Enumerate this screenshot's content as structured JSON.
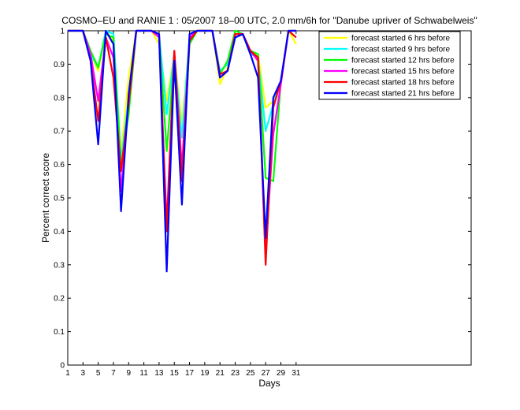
{
  "chart_data": {
    "type": "line",
    "title": "COSMO–EU and RANIE 1 : 05/2007 18–00 UTC, 2.0 mm/6h for \"Danube upriver of Schwabelweis\"",
    "xlabel": "Days",
    "ylabel": "Percent correct score",
    "xlim": [
      1,
      54
    ],
    "ylim": [
      0,
      1
    ],
    "x_ticks": [
      1,
      3,
      5,
      7,
      9,
      11,
      13,
      15,
      17,
      19,
      21,
      23,
      25,
      27,
      29,
      31
    ],
    "y_ticks": [
      0,
      0.1,
      0.2,
      0.3,
      0.4,
      0.5,
      0.6,
      0.7,
      0.8,
      0.9,
      1
    ],
    "y_tick_labels": [
      "0",
      "0.1",
      "0.2",
      "0.3",
      "0.4",
      "0.5",
      "0.6",
      "0.7",
      "0.8",
      "0.9",
      "1"
    ],
    "grid": false,
    "legend_position": "top-right",
    "x": [
      1,
      2,
      3,
      4,
      5,
      6,
      7,
      8,
      9,
      10,
      11,
      12,
      13,
      14,
      15,
      16,
      17,
      18,
      19,
      20,
      21,
      22,
      23,
      24,
      25,
      26,
      27,
      28,
      29,
      30,
      31
    ],
    "series": [
      {
        "name": "forecast started 6 hrs before",
        "color": "#ffff00",
        "values": [
          1,
          1,
          1,
          0.93,
          0.88,
          1,
          0.97,
          0.63,
          0.86,
          1,
          1,
          1,
          0.96,
          0.79,
          0.93,
          0.72,
          0.97,
          1,
          1,
          1,
          0.84,
          0.89,
          0.99,
          0.99,
          0.93,
          0.93,
          0.77,
          0.79,
          0.85,
          1,
          0.96
        ]
      },
      {
        "name": "forecast started 9 hrs before",
        "color": "#00ffff",
        "values": [
          1,
          1,
          1,
          0.93,
          0.89,
          1,
          0.99,
          0.61,
          0.8,
          1,
          1,
          1,
          0.99,
          0.75,
          0.93,
          0.68,
          0.98,
          1,
          1,
          1,
          0.88,
          0.9,
          0.98,
          0.99,
          0.93,
          0.92,
          0.7,
          0.78,
          0.85,
          1,
          0.98
        ]
      },
      {
        "name": "forecast started 12 hrs before",
        "color": "#00ff00",
        "values": [
          1,
          1,
          1,
          0.94,
          0.89,
          0.99,
          0.98,
          0.59,
          0.75,
          1,
          1,
          1,
          0.98,
          0.64,
          0.92,
          0.56,
          0.96,
          1,
          1,
          1,
          0.87,
          0.91,
          1,
          0.99,
          0.94,
          0.93,
          0.56,
          0.55,
          0.85,
          1,
          1
        ]
      },
      {
        "name": "forecast started 15 hrs before",
        "color": "#ff00ff",
        "values": [
          1,
          1,
          1,
          0.93,
          0.79,
          0.98,
          0.92,
          0.52,
          0.79,
          1,
          1,
          1,
          0.98,
          0.42,
          0.94,
          0.59,
          0.98,
          1,
          1,
          1,
          0.86,
          0.88,
          0.99,
          0.99,
          0.94,
          0.91,
          0.34,
          0.69,
          0.84,
          1,
          1
        ]
      },
      {
        "name": "forecast started 18 hrs before",
        "color": "#ff0000",
        "values": [
          1,
          1,
          1,
          0.91,
          0.73,
          0.98,
          0.86,
          0.58,
          0.78,
          1,
          1,
          1,
          0.99,
          0.4,
          0.94,
          0.55,
          0.97,
          1,
          1,
          1,
          0.87,
          0.88,
          0.99,
          0.99,
          0.94,
          0.92,
          0.3,
          0.77,
          0.85,
          1,
          0.98
        ]
      },
      {
        "name": "forecast started 21 hrs before",
        "color": "#0000ff",
        "values": [
          1,
          1,
          1,
          0.91,
          0.66,
          1,
          0.96,
          0.46,
          0.81,
          1,
          1,
          1,
          0.99,
          0.28,
          0.91,
          0.48,
          0.99,
          1,
          1,
          1,
          0.86,
          0.88,
          0.98,
          0.99,
          0.93,
          0.86,
          0.38,
          0.8,
          0.85,
          1,
          1
        ]
      }
    ]
  }
}
